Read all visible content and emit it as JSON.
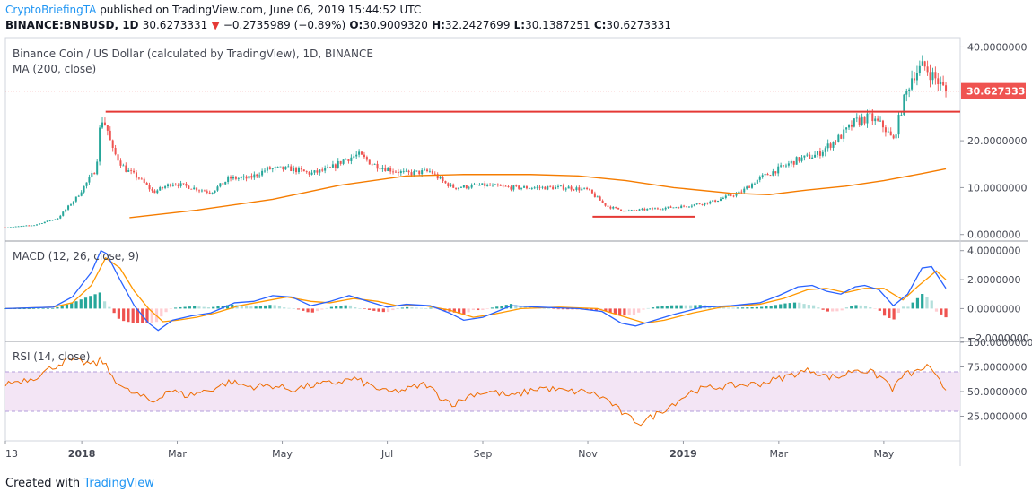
{
  "header": {
    "author": "CryptoBriefingTA",
    "published": "published on TradingView.com, June 06, 2019 15:44:52 UTC",
    "symbol": "BINANCE:BNBUSD, 1D",
    "last": "30.6273331",
    "change_arrow": "▼",
    "change": "−0.2735989 (−0.89%)",
    "o_label": "O:",
    "o_value": "30.9009320",
    "h_label": "H:",
    "h_value": "32.2427699",
    "l_label": "L:",
    "l_value": "30.1387251",
    "c_label": "C:",
    "c_value": "30.6273331"
  },
  "footer": {
    "created_with": "Created with",
    "brand": "TradingView"
  },
  "colors": {
    "up": "#26a69a",
    "down": "#ef5350",
    "ma": "#f57c00",
    "macd": "#2962ff",
    "signal": "#ff9800",
    "rsi": "#ef6c00",
    "rsi_band": "#f3e5f5",
    "level": "#e53935",
    "price_label_bg": "#ef5350"
  },
  "chart_data": [
    {
      "type": "candlestick",
      "title": "Binance Coin / US Dollar (calculated by TradingView), 1D, BINANCE",
      "indicator": "MA (200, close)",
      "price_label": "30.6273331",
      "ylim": [
        -1.2,
        42
      ],
      "y_ticks": [
        {
          "v": 0,
          "label": "0.0000000"
        },
        {
          "v": 10,
          "label": "10.0000000"
        },
        {
          "v": 20,
          "label": "20.0000000"
        },
        {
          "v": 40,
          "label": "40.0000000"
        }
      ],
      "x_ticks": [
        {
          "t": 0.0,
          "label": "13",
          "bold": false
        },
        {
          "t": 0.08,
          "label": "2018",
          "bold": true
        },
        {
          "t": 0.18,
          "label": "Mar",
          "bold": false
        },
        {
          "t": 0.29,
          "label": "May",
          "bold": false
        },
        {
          "t": 0.4,
          "label": "Jul",
          "bold": false
        },
        {
          "t": 0.5,
          "label": "Sep",
          "bold": false
        },
        {
          "t": 0.61,
          "label": "Nov",
          "bold": false
        },
        {
          "t": 0.71,
          "label": "2019",
          "bold": true
        },
        {
          "t": 0.81,
          "label": "Mar",
          "bold": false
        },
        {
          "t": 0.92,
          "label": "May",
          "bold": false
        }
      ],
      "close_anchors": [
        [
          0.0,
          1.5
        ],
        [
          0.03,
          2.0
        ],
        [
          0.055,
          3.5
        ],
        [
          0.075,
          8
        ],
        [
          0.095,
          14
        ],
        [
          0.1,
          25
        ],
        [
          0.106,
          23
        ],
        [
          0.112,
          18
        ],
        [
          0.125,
          14
        ],
        [
          0.14,
          12
        ],
        [
          0.155,
          9
        ],
        [
          0.175,
          11
        ],
        [
          0.195,
          10
        ],
        [
          0.215,
          9
        ],
        [
          0.235,
          12
        ],
        [
          0.255,
          12
        ],
        [
          0.275,
          14
        ],
        [
          0.3,
          14
        ],
        [
          0.32,
          13
        ],
        [
          0.34,
          14
        ],
        [
          0.355,
          16
        ],
        [
          0.37,
          17
        ],
        [
          0.385,
          15
        ],
        [
          0.4,
          14
        ],
        [
          0.42,
          13
        ],
        [
          0.445,
          13.5
        ],
        [
          0.46,
          11
        ],
        [
          0.47,
          10
        ],
        [
          0.5,
          10.5
        ],
        [
          0.53,
          10
        ],
        [
          0.56,
          10
        ],
        [
          0.59,
          10
        ],
        [
          0.61,
          9.5
        ],
        [
          0.63,
          6
        ],
        [
          0.65,
          5
        ],
        [
          0.68,
          5.5
        ],
        [
          0.71,
          6
        ],
        [
          0.74,
          7
        ],
        [
          0.77,
          9
        ],
        [
          0.79,
          12
        ],
        [
          0.81,
          14
        ],
        [
          0.83,
          16
        ],
        [
          0.85,
          17
        ],
        [
          0.875,
          21
        ],
        [
          0.89,
          24
        ],
        [
          0.905,
          25
        ],
        [
          0.92,
          23
        ],
        [
          0.93,
          20
        ],
        [
          0.94,
          28
        ],
        [
          0.95,
          34
        ],
        [
          0.962,
          36
        ],
        [
          0.975,
          33
        ],
        [
          0.985,
          30.6
        ]
      ],
      "ma200": [
        [
          0.13,
          3.6
        ],
        [
          0.2,
          5.2
        ],
        [
          0.28,
          7.5
        ],
        [
          0.35,
          10.5
        ],
        [
          0.42,
          12.5
        ],
        [
          0.48,
          12.8
        ],
        [
          0.55,
          12.8
        ],
        [
          0.6,
          12.5
        ],
        [
          0.65,
          11.5
        ],
        [
          0.7,
          10
        ],
        [
          0.76,
          8.8
        ],
        [
          0.8,
          8.5
        ],
        [
          0.84,
          9.5
        ],
        [
          0.88,
          10.3
        ],
        [
          0.92,
          11.5
        ],
        [
          0.96,
          13
        ],
        [
          0.985,
          14
        ]
      ],
      "levels": [
        {
          "name": "resistance",
          "value": 26.2,
          "from": 0.105,
          "to": 1.0
        },
        {
          "name": "support",
          "value": 3.8,
          "from": 0.615,
          "to": 0.722
        }
      ],
      "last_dotted": 30.6
    },
    {
      "type": "line",
      "title": "MACD (12, 26, close, 9)",
      "ylim": [
        -2.2,
        4.6
      ],
      "y_ticks": [
        {
          "v": -2,
          "label": "−2.0000000"
        },
        {
          "v": 0,
          "label": "0.0000000"
        },
        {
          "v": 2,
          "label": "2.0000000"
        },
        {
          "v": 4,
          "label": "4.0000000"
        }
      ],
      "macd": [
        [
          0.0,
          0.0
        ],
        [
          0.05,
          0.1
        ],
        [
          0.07,
          0.8
        ],
        [
          0.09,
          2.5
        ],
        [
          0.1,
          4.0
        ],
        [
          0.106,
          3.8
        ],
        [
          0.12,
          2.0
        ],
        [
          0.135,
          0.2
        ],
        [
          0.15,
          -1.0
        ],
        [
          0.16,
          -1.5
        ],
        [
          0.175,
          -0.8
        ],
        [
          0.195,
          -0.5
        ],
        [
          0.215,
          -0.3
        ],
        [
          0.24,
          0.4
        ],
        [
          0.26,
          0.5
        ],
        [
          0.28,
          0.9
        ],
        [
          0.3,
          0.8
        ],
        [
          0.32,
          0.2
        ],
        [
          0.34,
          0.5
        ],
        [
          0.36,
          0.9
        ],
        [
          0.385,
          0.4
        ],
        [
          0.4,
          0.1
        ],
        [
          0.42,
          0.3
        ],
        [
          0.445,
          0.2
        ],
        [
          0.465,
          -0.3
        ],
        [
          0.48,
          -0.8
        ],
        [
          0.5,
          -0.6
        ],
        [
          0.53,
          0.2
        ],
        [
          0.56,
          0.1
        ],
        [
          0.6,
          0.0
        ],
        [
          0.625,
          -0.2
        ],
        [
          0.645,
          -1.0
        ],
        [
          0.66,
          -1.2
        ],
        [
          0.68,
          -0.8
        ],
        [
          0.7,
          -0.4
        ],
        [
          0.73,
          0.1
        ],
        [
          0.76,
          0.2
        ],
        [
          0.79,
          0.4
        ],
        [
          0.81,
          0.9
        ],
        [
          0.83,
          1.5
        ],
        [
          0.845,
          1.6
        ],
        [
          0.86,
          1.2
        ],
        [
          0.875,
          1.0
        ],
        [
          0.89,
          1.5
        ],
        [
          0.9,
          1.6
        ],
        [
          0.915,
          1.3
        ],
        [
          0.93,
          0.2
        ],
        [
          0.945,
          1.0
        ],
        [
          0.96,
          2.8
        ],
        [
          0.97,
          2.9
        ],
        [
          0.985,
          1.4
        ]
      ],
      "signal": [
        [
          0.0,
          0.0
        ],
        [
          0.05,
          0.1
        ],
        [
          0.07,
          0.4
        ],
        [
          0.09,
          1.6
        ],
        [
          0.105,
          3.5
        ],
        [
          0.12,
          2.8
        ],
        [
          0.135,
          1.2
        ],
        [
          0.15,
          0.0
        ],
        [
          0.165,
          -0.9
        ],
        [
          0.18,
          -0.8
        ],
        [
          0.2,
          -0.6
        ],
        [
          0.22,
          -0.3
        ],
        [
          0.245,
          0.2
        ],
        [
          0.27,
          0.5
        ],
        [
          0.295,
          0.8
        ],
        [
          0.32,
          0.5
        ],
        [
          0.34,
          0.4
        ],
        [
          0.365,
          0.7
        ],
        [
          0.39,
          0.5
        ],
        [
          0.41,
          0.2
        ],
        [
          0.44,
          0.2
        ],
        [
          0.465,
          -0.1
        ],
        [
          0.49,
          -0.6
        ],
        [
          0.51,
          -0.4
        ],
        [
          0.54,
          0.0
        ],
        [
          0.58,
          0.1
        ],
        [
          0.62,
          0.0
        ],
        [
          0.65,
          -0.6
        ],
        [
          0.67,
          -1.0
        ],
        [
          0.69,
          -0.8
        ],
        [
          0.72,
          -0.3
        ],
        [
          0.75,
          0.1
        ],
        [
          0.79,
          0.3
        ],
        [
          0.815,
          0.7
        ],
        [
          0.84,
          1.3
        ],
        [
          0.86,
          1.4
        ],
        [
          0.88,
          1.1
        ],
        [
          0.9,
          1.4
        ],
        [
          0.92,
          1.4
        ],
        [
          0.94,
          0.6
        ],
        [
          0.955,
          1.5
        ],
        [
          0.975,
          2.6
        ],
        [
          0.985,
          2.0
        ]
      ]
    },
    {
      "type": "line",
      "title": "RSI (14, close)",
      "ylim": [
        0,
        100
      ],
      "y_ticks": [
        {
          "v": 25,
          "label": "25.0000000"
        },
        {
          "v": 50,
          "label": "50.0000000"
        },
        {
          "v": 75,
          "label": "75.0000000"
        },
        {
          "v": 100,
          "label": "100.0000000"
        }
      ],
      "band": [
        30,
        70
      ],
      "rsi": [
        [
          0.0,
          58
        ],
        [
          0.03,
          64
        ],
        [
          0.05,
          75
        ],
        [
          0.065,
          82
        ],
        [
          0.08,
          80
        ],
        [
          0.095,
          77
        ],
        [
          0.1,
          84
        ],
        [
          0.11,
          68
        ],
        [
          0.125,
          52
        ],
        [
          0.145,
          44
        ],
        [
          0.155,
          39
        ],
        [
          0.17,
          52
        ],
        [
          0.19,
          46
        ],
        [
          0.215,
          52
        ],
        [
          0.235,
          60
        ],
        [
          0.255,
          55
        ],
        [
          0.28,
          56
        ],
        [
          0.3,
          52
        ],
        [
          0.32,
          56
        ],
        [
          0.345,
          59
        ],
        [
          0.365,
          63
        ],
        [
          0.385,
          55
        ],
        [
          0.4,
          49
        ],
        [
          0.42,
          52
        ],
        [
          0.44,
          58
        ],
        [
          0.455,
          45
        ],
        [
          0.47,
          37
        ],
        [
          0.49,
          48
        ],
        [
          0.51,
          50
        ],
        [
          0.53,
          45
        ],
        [
          0.56,
          54
        ],
        [
          0.59,
          50
        ],
        [
          0.61,
          50
        ],
        [
          0.63,
          42
        ],
        [
          0.65,
          25
        ],
        [
          0.665,
          18
        ],
        [
          0.68,
          26
        ],
        [
          0.7,
          38
        ],
        [
          0.72,
          51
        ],
        [
          0.74,
          54
        ],
        [
          0.76,
          56
        ],
        [
          0.79,
          58
        ],
        [
          0.81,
          63
        ],
        [
          0.83,
          69
        ],
        [
          0.845,
          72
        ],
        [
          0.86,
          65
        ],
        [
          0.875,
          65
        ],
        [
          0.89,
          73
        ],
        [
          0.905,
          70
        ],
        [
          0.92,
          63
        ],
        [
          0.93,
          52
        ],
        [
          0.94,
          67
        ],
        [
          0.955,
          70
        ],
        [
          0.965,
          76
        ],
        [
          0.975,
          64
        ],
        [
          0.985,
          52
        ]
      ]
    }
  ]
}
